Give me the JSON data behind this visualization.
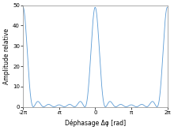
{
  "N": 7,
  "xlim": [
    -6.2831853,
    6.2831853
  ],
  "ylim": [
    0,
    50
  ],
  "yticks": [
    0,
    10,
    20,
    30,
    40,
    50
  ],
  "xtick_positions": [
    -6.2831853,
    -3.14159265,
    0,
    3.14159265,
    6.2831853
  ],
  "xtick_labels": [
    "-2π",
    "-π",
    "0",
    "π",
    "2π"
  ],
  "xlabel": "Déphasage Δφ [rad]",
  "ylabel": "Amplitude relative",
  "line_color": "#5b9bd5",
  "background_color": "#ffffff",
  "num_points": 50000
}
